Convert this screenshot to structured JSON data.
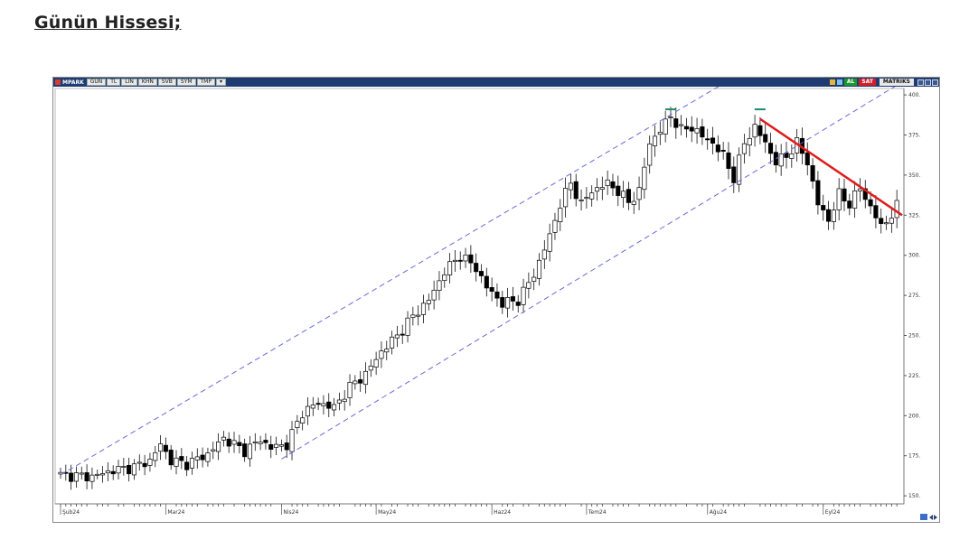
{
  "page": {
    "heading": "Günün Hissesi;"
  },
  "toolbar": {
    "symbol": "MPARK",
    "buttons": [
      "GUN",
      "TL",
      "LIN",
      "KHN",
      "SVB",
      "SYM",
      "TMP"
    ],
    "buy_label": "AL",
    "sell_label": "SAT",
    "matriks_label": "MATRIKS",
    "colors": {
      "bar": "#1f3c72",
      "buy": "#1b9a2c",
      "sell": "#d0202a"
    }
  },
  "chart_data": {
    "type": "candlestick",
    "y_ticks": [
      "400.",
      "375.",
      "350.",
      "325.",
      "300.",
      "275.",
      "250.",
      "225.",
      "200.",
      "175.",
      "150."
    ],
    "ylim": [
      145,
      404
    ],
    "x_labels": [
      {
        "label": "Şub24",
        "index": 0
      },
      {
        "label": "Mar24",
        "index": 20
      },
      {
        "label": "Nis24",
        "index": 42
      },
      {
        "label": "May24",
        "index": 60
      },
      {
        "label": "Haz24",
        "index": 82
      },
      {
        "label": "Tem24",
        "index": 100
      },
      {
        "label": "Ağu24",
        "index": 123
      },
      {
        "label": "Eyl24",
        "index": 145
      }
    ],
    "n": 160,
    "channel": {
      "upper": [
        [
          0,
          163
        ],
        [
          126,
          407
        ]
      ],
      "lower": [
        [
          42,
          173
        ],
        [
          160,
          408
        ]
      ],
      "color": "#6a6ad8"
    },
    "resistance": {
      "points": [
        [
          133,
          385
        ],
        [
          160,
          325
        ]
      ],
      "color": "#e01b1b"
    },
    "peak_markers": [
      {
        "index": 116,
        "value": 391
      },
      {
        "index": 133,
        "value": 391
      }
    ],
    "anchors": [
      [
        0,
        163
      ],
      [
        6,
        162
      ],
      [
        10,
        166
      ],
      [
        14,
        168
      ],
      [
        17,
        172
      ],
      [
        19,
        182
      ],
      [
        21,
        172
      ],
      [
        24,
        170
      ],
      [
        28,
        176
      ],
      [
        31,
        186
      ],
      [
        35,
        178
      ],
      [
        38,
        185
      ],
      [
        40,
        180
      ],
      [
        43,
        182
      ],
      [
        46,
        202
      ],
      [
        49,
        208
      ],
      [
        52,
        205
      ],
      [
        55,
        218
      ],
      [
        58,
        226
      ],
      [
        61,
        240
      ],
      [
        64,
        250
      ],
      [
        67,
        262
      ],
      [
        70,
        272
      ],
      [
        73,
        290
      ],
      [
        76,
        300
      ],
      [
        79,
        292
      ],
      [
        81,
        280
      ],
      [
        84,
        270
      ],
      [
        87,
        272
      ],
      [
        90,
        288
      ],
      [
        93,
        312
      ],
      [
        95,
        332
      ],
      [
        97,
        345
      ],
      [
        99,
        332
      ],
      [
        101,
        340
      ],
      [
        104,
        345
      ],
      [
        106,
        340
      ],
      [
        108,
        333
      ],
      [
        110,
        340
      ],
      [
        112,
        370
      ],
      [
        114,
        378
      ],
      [
        116,
        387
      ],
      [
        118,
        378
      ],
      [
        120,
        380
      ],
      [
        122,
        374
      ],
      [
        124,
        370
      ],
      [
        126,
        362
      ],
      [
        128,
        348
      ],
      [
        130,
        370
      ],
      [
        132,
        380
      ],
      [
        134,
        370
      ],
      [
        136,
        358
      ],
      [
        138,
        362
      ],
      [
        140,
        370
      ],
      [
        142,
        358
      ],
      [
        144,
        332
      ],
      [
        146,
        322
      ],
      [
        148,
        338
      ],
      [
        150,
        332
      ],
      [
        152,
        342
      ],
      [
        154,
        330
      ],
      [
        156,
        318
      ],
      [
        158,
        325
      ],
      [
        160,
        336
      ]
    ]
  }
}
